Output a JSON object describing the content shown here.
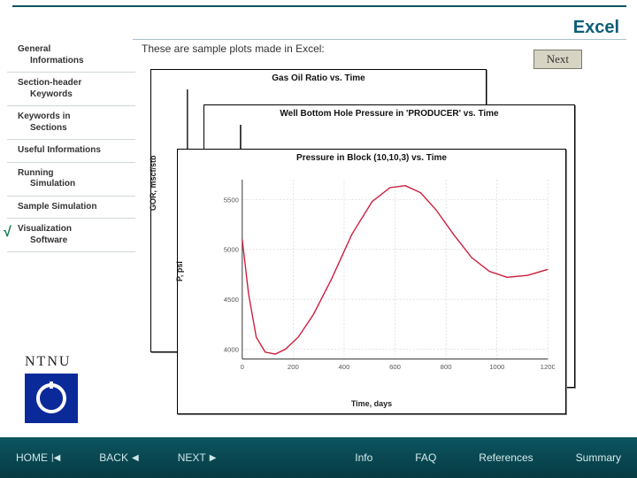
{
  "header": {
    "title": "Excel"
  },
  "lead": "These are sample plots made in Excel:",
  "next_label": "Next",
  "sidebar": {
    "items": [
      {
        "line1": "General",
        "line2": "Informations",
        "active": false
      },
      {
        "line1": "Section-header",
        "line2": "Keywords",
        "active": false
      },
      {
        "line1": "Keywords in",
        "line2": "Sections",
        "active": false
      },
      {
        "line1": "Useful Informations",
        "line2": "",
        "active": false
      },
      {
        "line1": "Running",
        "line2": "Simulation",
        "active": false
      },
      {
        "line1": "Sample Simulation",
        "line2": "",
        "active": false
      },
      {
        "line1": "Visualization",
        "line2": "Software",
        "active": true
      }
    ]
  },
  "logo": {
    "text": "NTNU",
    "bg": "#0a2a9a"
  },
  "footer": {
    "nav": [
      {
        "label": "HOME",
        "glyph": "|◀"
      },
      {
        "label": "BACK",
        "glyph": "◀"
      },
      {
        "label": "NEXT",
        "glyph": "▶"
      }
    ],
    "links": [
      "Info",
      "FAQ",
      "References",
      "Summary"
    ]
  },
  "charts": {
    "back": {
      "title": "Gas Oil Ratio vs. Time",
      "x_label": "",
      "y_label": "GOR, mscf/stb"
    },
    "mid": {
      "title": "Well Bottom Hole Pressure in 'PRODUCER' vs. Time",
      "x_label": "",
      "y_label": ""
    },
    "front": {
      "type": "line",
      "title": "Pressure in Block (10,10,3) vs. Time",
      "x_label": "Time, days",
      "y_label": "P, psi",
      "xlim": [
        0,
        1200
      ],
      "ylim": [
        3900,
        5700
      ],
      "xticks": [
        0,
        200,
        400,
        600,
        800,
        1000,
        1200
      ],
      "yticks": [
        4000,
        4500,
        5000,
        5500
      ],
      "line_color": "#cc1a3a",
      "line_width": 1.4,
      "grid_color": "#cccccc",
      "background_color": "#ffffff",
      "title_fontsize": 10,
      "label_fontsize": 9,
      "data": [
        [
          0,
          5100
        ],
        [
          25,
          4550
        ],
        [
          55,
          4120
        ],
        [
          90,
          3970
        ],
        [
          130,
          3950
        ],
        [
          170,
          4000
        ],
        [
          220,
          4120
        ],
        [
          280,
          4350
        ],
        [
          350,
          4700
        ],
        [
          430,
          5150
        ],
        [
          510,
          5480
        ],
        [
          580,
          5620
        ],
        [
          640,
          5640
        ],
        [
          700,
          5570
        ],
        [
          760,
          5400
        ],
        [
          830,
          5150
        ],
        [
          900,
          4920
        ],
        [
          970,
          4780
        ],
        [
          1040,
          4720
        ],
        [
          1120,
          4740
        ],
        [
          1200,
          4800
        ]
      ]
    }
  }
}
